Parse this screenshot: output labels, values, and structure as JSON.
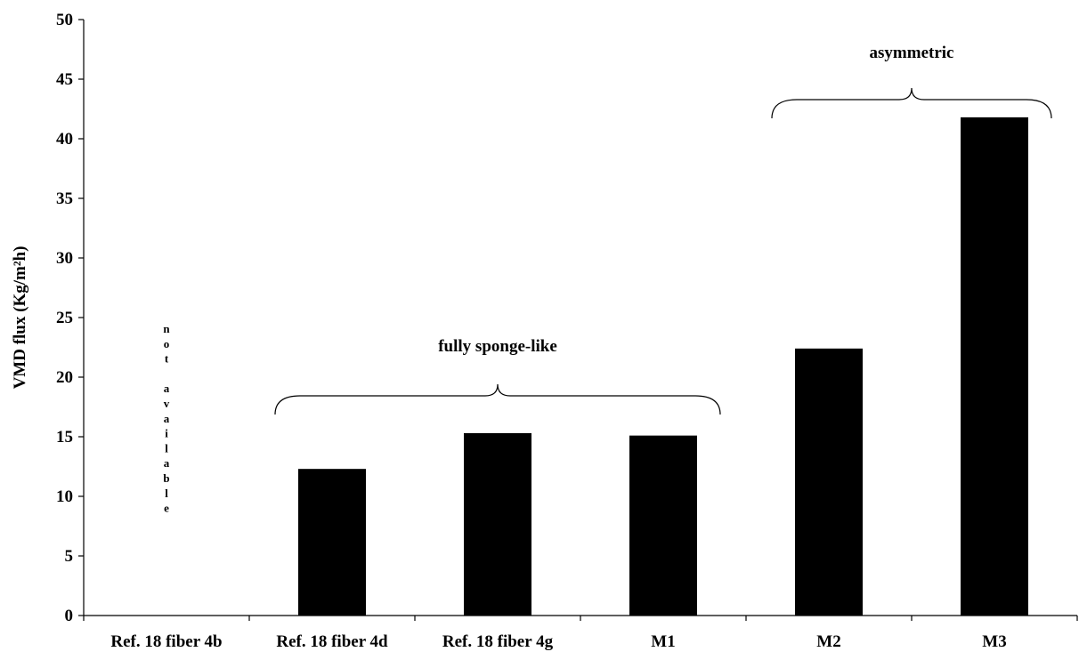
{
  "chart_data": {
    "type": "bar",
    "title": "",
    "xlabel": "",
    "ylabel": "VMD flux (Kg/m²h)",
    "ylim": [
      0,
      50
    ],
    "yticks": [
      0,
      5,
      10,
      15,
      20,
      25,
      30,
      35,
      40,
      45,
      50
    ],
    "grid": false,
    "legend": "none",
    "categories": [
      "Ref. 18 fiber 4b",
      "Ref. 18 fiber 4d",
      "Ref. 18 fiber 4g",
      "M1",
      "M2",
      "M3"
    ],
    "values": [
      null,
      12.3,
      15.3,
      15.1,
      22.4,
      41.8
    ],
    "bar_color": "#000000",
    "annotations": [
      {
        "text": "not available",
        "category": "Ref. 18 fiber 4b",
        "orientation": "vertical-stacked"
      },
      {
        "text": "fully sponge-like",
        "spans": [
          "Ref. 18 fiber 4d",
          "M1"
        ],
        "brace": true
      },
      {
        "text": "asymmetric",
        "spans": [
          "M2",
          "M3"
        ],
        "brace": true
      }
    ]
  }
}
